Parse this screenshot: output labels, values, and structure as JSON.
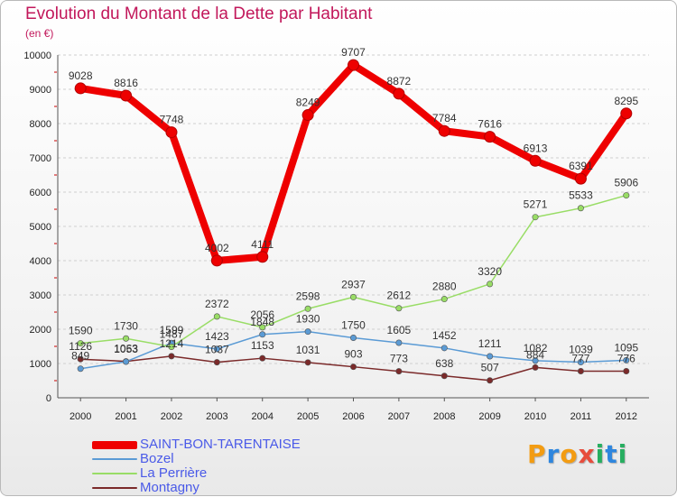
{
  "header": {
    "title": "Evolution du Montant de la Dette par Habitant",
    "subtitle": "(en €)"
  },
  "logo": {
    "text": "Proxiti",
    "letter_colors": [
      "#f39c12",
      "#2e86de",
      "#f39c12",
      "#e74c3c",
      "#27ae60",
      "#2e86de",
      "#27ae60"
    ]
  },
  "chart_data": {
    "type": "line",
    "title": "Evolution du Montant de la Dette par Habitant",
    "subtitle": "(en €)",
    "xlabel": "",
    "ylabel": "",
    "x": [
      "2000",
      "2001",
      "2002",
      "2003",
      "2004",
      "2005",
      "2006",
      "2007",
      "2008",
      "2009",
      "2010",
      "2011",
      "2012"
    ],
    "ylim": [
      0,
      10000
    ],
    "yticks": [
      "0",
      "1000",
      "2000",
      "3000",
      "4000",
      "5000",
      "6000",
      "7000",
      "8000",
      "9000",
      "10000"
    ],
    "grid": "horizontal dashed",
    "legend_position": "bottom-left",
    "series": [
      {
        "name": "SAINT-BON-TARENTAISE",
        "color": "#ee0000",
        "values": [
          9028,
          8816,
          7748,
          4002,
          4111,
          8249,
          9707,
          8872,
          7784,
          7616,
          6913,
          6391,
          8295
        ]
      },
      {
        "name": "Bozel",
        "color": "#5b9bd5",
        "values": [
          849,
          1053,
          1599,
          1423,
          1848,
          1930,
          1750,
          1605,
          1452,
          1211,
          1082,
          1039,
          1095
        ]
      },
      {
        "name": "La Perrière",
        "color": "#99dd66",
        "values": [
          1590,
          1730,
          1487,
          2372,
          2056,
          2598,
          2937,
          2612,
          2880,
          3320,
          5271,
          5533,
          5906
        ]
      },
      {
        "name": "Montagny",
        "color": "#7b2a2a",
        "values": [
          1126,
          1063,
          1214,
          1037,
          1153,
          1031,
          903,
          773,
          638,
          507,
          884,
          777,
          776
        ]
      }
    ]
  }
}
